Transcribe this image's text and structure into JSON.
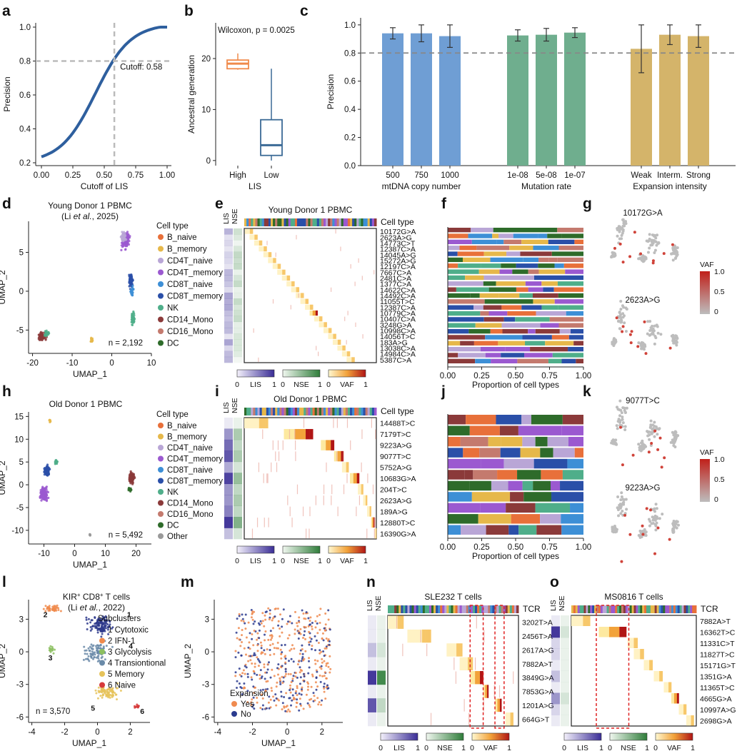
{
  "panel_letters": [
    "a",
    "b",
    "c",
    "d",
    "e",
    "f",
    "g",
    "h",
    "i",
    "j",
    "k",
    "l",
    "m",
    "n",
    "o"
  ],
  "colors": {
    "blue": "#2e5f9e",
    "orange": "#f08a4b",
    "bar_blue": "#6f9ed4",
    "bar_green": "#6fae8e",
    "bar_gold": "#d4b46a",
    "lis": "#3a2d96",
    "nse": "#2f7d3a",
    "vaf_hi": "#b01515"
  },
  "chart_data": [
    {
      "panel": "a",
      "type": "line",
      "xlabel": "Cutoff of LIS",
      "ylabel": "Precision",
      "xlim": [
        0,
        1
      ],
      "ylim": [
        0.2,
        1.0
      ],
      "x": [
        0,
        0.1,
        0.2,
        0.3,
        0.4,
        0.5,
        0.58,
        0.7,
        0.8,
        0.9,
        1.0
      ],
      "y": [
        0.22,
        0.26,
        0.32,
        0.42,
        0.55,
        0.69,
        0.8,
        0.91,
        0.96,
        0.99,
        1.0
      ],
      "cutoff": 0.58,
      "precision_line": 0.8,
      "annotation": "Cutoff: 0.58",
      "xticks": [
        "0.00",
        "0.25",
        "0.50",
        "0.75",
        "1.00"
      ],
      "yticks": [
        "0.2",
        "0.4",
        "0.6",
        "0.8",
        "1.0"
      ]
    },
    {
      "panel": "b",
      "type": "box",
      "annotation": "Wilcoxon, p = 0.0025",
      "xlabel": "LIS",
      "ylabel": "Ancestral generation",
      "categories": [
        "High",
        "Low"
      ],
      "ylim": [
        -1,
        27
      ],
      "yticks": [
        "0",
        "10",
        "20"
      ],
      "boxes": [
        {
          "name": "High",
          "min": 17.8,
          "q1": 18,
          "median": 19,
          "q3": 19.7,
          "max": 21
        },
        {
          "name": "Low",
          "min": 0,
          "q1": 1,
          "median": 3,
          "q3": 8,
          "max": 18
        }
      ]
    },
    {
      "panel": "c",
      "type": "bar",
      "ylabel": "Precision",
      "ylim": [
        0,
        1.05
      ],
      "yticks": [
        "0.0",
        "0.2",
        "0.4",
        "0.6",
        "0.8",
        "1.0"
      ],
      "ref_line": 0.8,
      "groups": [
        {
          "name": "mtDNA copy number",
          "categories": [
            "500",
            "750",
            "1000"
          ],
          "values": [
            0.94,
            0.94,
            0.92
          ],
          "err": [
            0.04,
            0.06,
            0.08
          ]
        },
        {
          "name": "Mutation rate",
          "categories": [
            "1e-08",
            "5e-08",
            "1e-07"
          ],
          "values": [
            0.925,
            0.93,
            0.945
          ],
          "err": [
            0.04,
            0.045,
            0.035
          ]
        },
        {
          "name": "Expansion intensity",
          "categories": [
            "Weak",
            "Interm.",
            "Strong"
          ],
          "values": [
            0.83,
            0.93,
            0.92
          ],
          "err": [
            0.17,
            0.07,
            0.08
          ]
        }
      ]
    },
    {
      "panel": "d",
      "type": "scatter",
      "title": "Young Donor 1 PBMC",
      "subtitle_pre": "(Li ",
      "subtitle_em": "et al.",
      "subtitle_post": ", 2025)",
      "xlabel": "UMAP_1",
      "ylabel": "UMAP_2",
      "xticks": [
        "-20",
        "-10",
        "0",
        "10"
      ],
      "yticks": [
        "-5",
        "0",
        "5"
      ],
      "xlim": [
        -21,
        10
      ],
      "ylim": [
        -8,
        9
      ],
      "n": "n = 2,192"
    },
    {
      "panel": "e",
      "type": "heatmap",
      "title": "Young Donor 1 PBMC",
      "row_header": "Cell type",
      "rows": [
        "10172G>A",
        "2623A>G",
        "14773C>T",
        "12387C>A",
        "14045A>G",
        "15272A>G",
        "12197C>A",
        "7667C>A",
        "2481C>A",
        "1377C>A",
        "14622C>A",
        "14492C>A",
        "11055T>C",
        "12387C>A",
        "10779C>A",
        "10407C>A",
        "3248G>A",
        "10998C>A",
        "14056T>C",
        "183A>G",
        "13038C>A",
        "14984C>A",
        "5387C>A"
      ]
    },
    {
      "panel": "f",
      "type": "bar",
      "xlabel": "Proportion of cell types",
      "xticks": [
        "0.00",
        "0.25",
        "0.50",
        "0.75",
        "1.00"
      ]
    },
    {
      "panel": "g",
      "type": "scatter",
      "labels": [
        "10172G>A",
        "2623A>G"
      ],
      "legend_title": "VAF",
      "legend_ticks": [
        "1.0",
        "0.5",
        "0"
      ]
    },
    {
      "panel": "h",
      "type": "scatter",
      "title": "Old Donor 1 PBMC",
      "xlabel": "UMAP_1",
      "ylabel": "UMAP_2",
      "xticks": [
        "-10",
        "0",
        "10",
        "20"
      ],
      "yticks": [
        "-10",
        "-5",
        "0",
        "5",
        "10",
        "15"
      ],
      "xlim": [
        -15,
        25
      ],
      "ylim": [
        -13,
        16
      ],
      "n": "n = 5,492"
    },
    {
      "panel": "i",
      "type": "heatmap",
      "title": "Old Donor 1 PBMC",
      "row_header": "Cell type",
      "rows": [
        {
          "t": "14488T>C",
          "red": false
        },
        {
          "t": "7179T>C",
          "red": true
        },
        {
          "t": "9223A>G",
          "red": true
        },
        {
          "t": "9077T>C",
          "red": true
        },
        {
          "t": "5752A>G",
          "red": false
        },
        {
          "t": "10683G>A",
          "red": true
        },
        {
          "t": "204T>C",
          "red": false
        },
        {
          "t": "2623A>G",
          "red": false
        },
        {
          "t": "189A>G",
          "red": false
        },
        {
          "t": "12880T>C",
          "red": true
        },
        {
          "t": "16390G>A",
          "red": false
        }
      ]
    },
    {
      "panel": "j",
      "type": "bar",
      "xlabel": "Proportion of cell types",
      "xticks": [
        "0.00",
        "0.25",
        "0.50",
        "0.75",
        "1.00"
      ]
    },
    {
      "panel": "k",
      "type": "scatter",
      "labels": [
        "9077T>C",
        "9223A>G"
      ],
      "legend_title": "VAF",
      "legend_ticks": [
        "1.0",
        "0.5",
        "0"
      ]
    },
    {
      "panel": "l",
      "type": "scatter",
      "title_pre": "KIR",
      "title_sup": "+",
      "title_post": " CD8",
      "title_sup2": "+",
      "title_end": " T cells",
      "subtitle_pre": "(Li ",
      "subtitle_em": "et al.",
      "subtitle_post": ", 2022)",
      "xlabel": "UMAP_1",
      "ylabel": "UMAP_2",
      "xticks": [
        "-4",
        "-2",
        "0",
        "2"
      ],
      "yticks": [
        "-6",
        "-3",
        "0",
        "3"
      ],
      "xlim": [
        -4.2,
        3.2
      ],
      "ylim": [
        -6.5,
        4.8
      ],
      "n": "n = 3,570",
      "legend_title": "Subclusters",
      "legend": [
        {
          "n": "1",
          "name": "Cytotoxic",
          "color": "#2e3a8c"
        },
        {
          "n": "2",
          "name": "IFN-1",
          "color": "#f08a4b"
        },
        {
          "n": "3",
          "name": "Glycolysis",
          "color": "#8cc060"
        },
        {
          "n": "4",
          "name": "Transiontional",
          "color": "#6a8aa8"
        },
        {
          "n": "5",
          "name": "Memory",
          "color": "#e6c35a"
        },
        {
          "n": "6",
          "name": "Naive",
          "color": "#d63a3a"
        }
      ]
    },
    {
      "panel": "m",
      "type": "scatter",
      "xlabel": "UMAP_1",
      "ylabel": "UMAP_2",
      "xticks": [
        "-4",
        "-2",
        "0",
        "2"
      ],
      "yticks": [
        "-6",
        "-3",
        "0",
        "3"
      ],
      "legend_title": "Expansion",
      "legend": [
        {
          "name": "Yes",
          "color": "#ef8a4f"
        },
        {
          "name": "No",
          "color": "#2b3b8f"
        }
      ]
    },
    {
      "panel": "n",
      "type": "heatmap",
      "title": "SLE232 T cells",
      "row_header": "TCR",
      "rows": [
        {
          "t": "3202T>A",
          "red": false
        },
        {
          "t": "2456T>A",
          "red": false
        },
        {
          "t": "2617A>G",
          "red": false
        },
        {
          "t": "7882A>T",
          "red": false
        },
        {
          "t": "3849G>A",
          "red": true
        },
        {
          "t": "7853G>A",
          "red": false
        },
        {
          "t": "1201A>G",
          "red": true
        },
        {
          "t": "664G>T",
          "red": false
        }
      ]
    },
    {
      "panel": "o",
      "type": "heatmap",
      "title": "MS0816 T cells",
      "row_header": "TCR",
      "rows": [
        {
          "t": "7882A>T",
          "red": false
        },
        {
          "t": "16362T>C",
          "red": true
        },
        {
          "t": "11331C>T",
          "red": false
        },
        {
          "t": "11827T>C",
          "red": false
        },
        {
          "t": "15171G>T",
          "red": false
        },
        {
          "t": "1351G>A",
          "red": false
        },
        {
          "t": "11365T>C",
          "red": false
        },
        {
          "t": "4665G>A",
          "red": false
        },
        {
          "t": "10997A>G",
          "red": false
        },
        {
          "t": "2698G>A",
          "red": false
        }
      ]
    }
  ],
  "cell_legend_title": "Cell type",
  "young_legend": [
    {
      "name": "B_naive",
      "color": "#e8703a"
    },
    {
      "name": "B_memory",
      "color": "#e6b84a"
    },
    {
      "name": "CD4T_naive",
      "color": "#b9a6d6"
    },
    {
      "name": "CD4T_memory",
      "color": "#9b59d0"
    },
    {
      "name": "CD8T_naive",
      "color": "#3d8fd6"
    },
    {
      "name": "CD8T_memory",
      "color": "#2a4fa8"
    },
    {
      "name": "NK",
      "color": "#4fae8a"
    },
    {
      "name": "CD14_Mono",
      "color": "#8b3a3a"
    },
    {
      "name": "CD16_Mono",
      "color": "#c47a6e"
    },
    {
      "name": "DC",
      "color": "#2e6b2a"
    }
  ],
  "old_legend": [
    {
      "name": "B_naive",
      "color": "#e8703a"
    },
    {
      "name": "B_memory",
      "color": "#e6b84a"
    },
    {
      "name": "CD4T_naive",
      "color": "#b9a6d6"
    },
    {
      "name": "CD4T_memory",
      "color": "#9b59d0"
    },
    {
      "name": "CD8T_naive",
      "color": "#3d8fd6"
    },
    {
      "name": "CD8T_memory",
      "color": "#2a4fa8"
    },
    {
      "name": "NK",
      "color": "#4fae8a"
    },
    {
      "name": "CD14_Mono",
      "color": "#8b3a3a"
    },
    {
      "name": "CD16_Mono",
      "color": "#c47a6e"
    },
    {
      "name": "DC",
      "color": "#2e6b2a"
    },
    {
      "name": "Other",
      "color": "#9a9a9a"
    }
  ],
  "scale_labels": {
    "lis": "LIS",
    "nse": "NSE",
    "vaf": "VAF",
    "zero": "0",
    "one": "1"
  },
  "col_labels": {
    "lis": "LIS",
    "nse": "NSE"
  }
}
